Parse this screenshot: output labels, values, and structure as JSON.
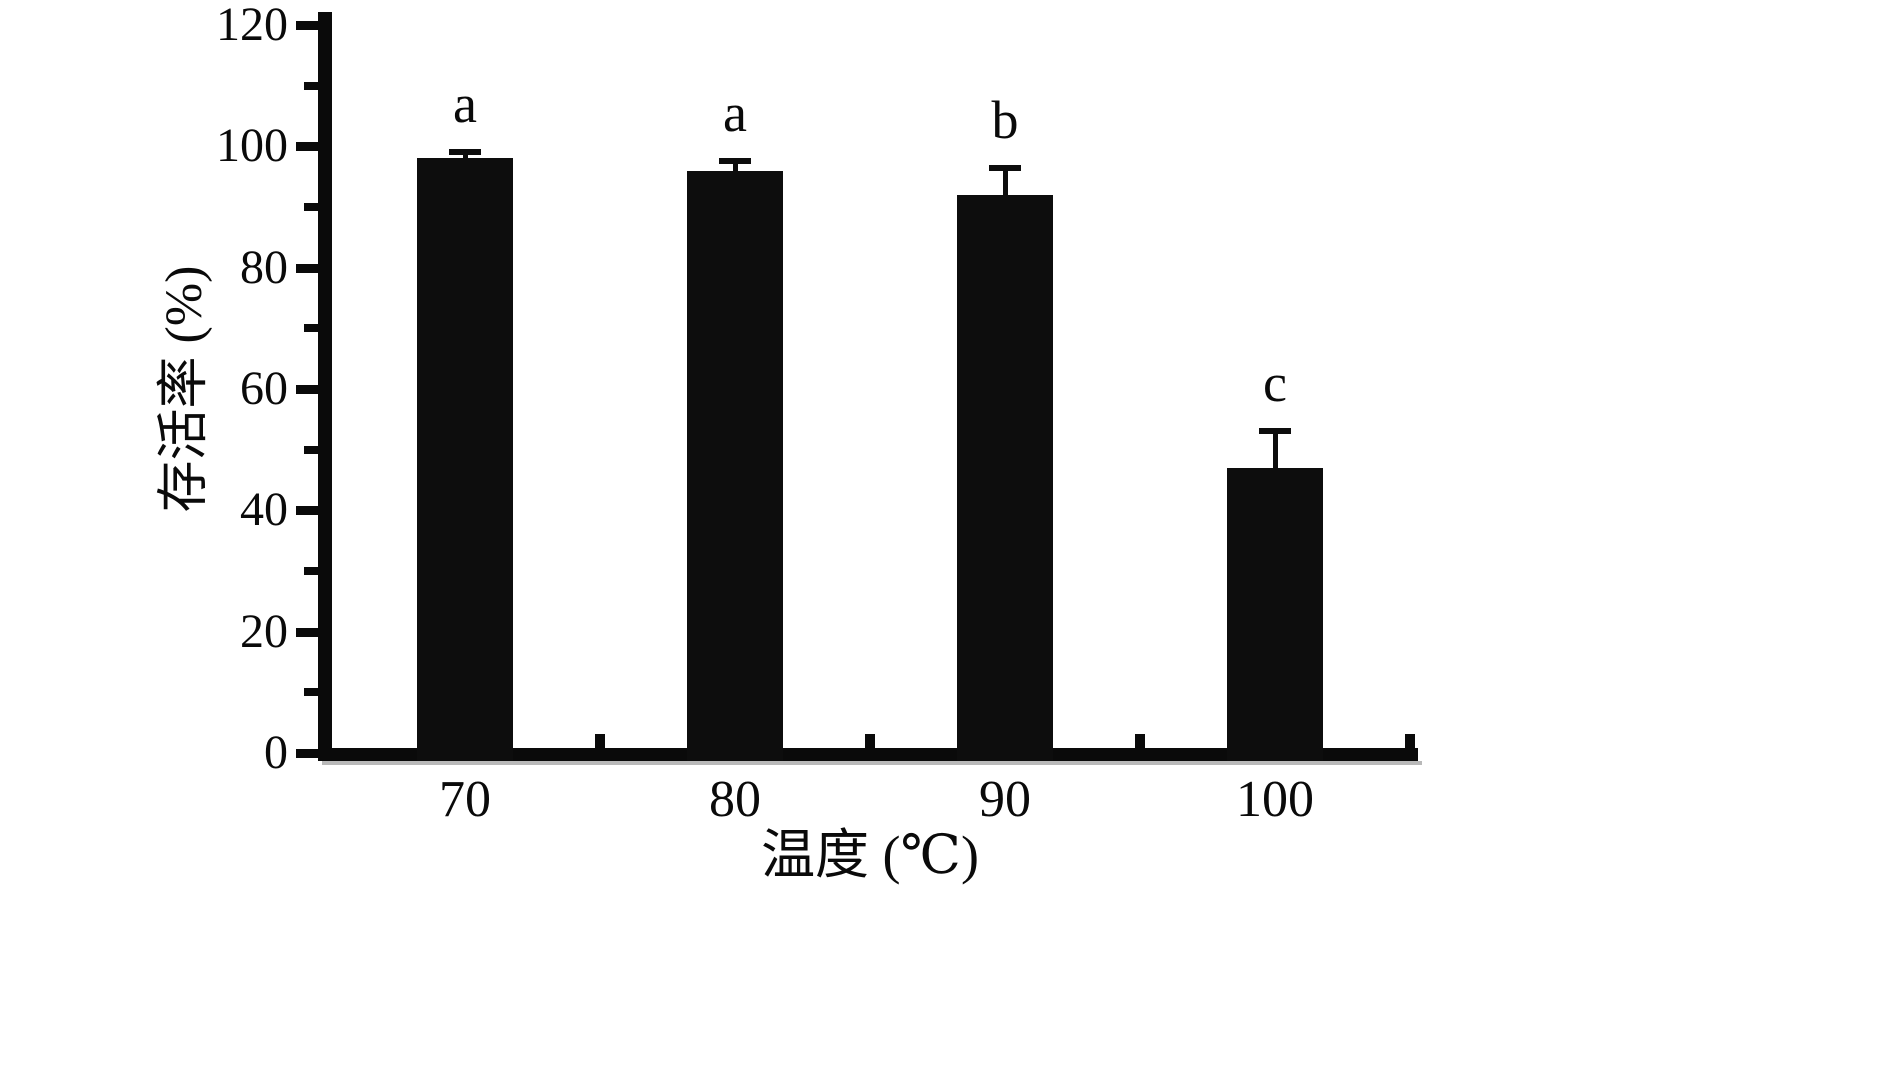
{
  "chart_data": {
    "type": "bar",
    "categories": [
      "70",
      "80",
      "90",
      "100"
    ],
    "values": [
      98,
      96,
      92,
      47
    ],
    "errors": [
      1.5,
      2,
      5,
      6.5
    ],
    "sig_labels": [
      "a",
      "a",
      "b",
      "c"
    ],
    "title": "",
    "xlabel": "温度 (℃)",
    "ylabel": "存活率 (%)",
    "ylim": [
      0,
      120
    ],
    "yticks": [
      0,
      20,
      40,
      60,
      80,
      100,
      120
    ],
    "yticks_minor": [
      10,
      30,
      50,
      70,
      90,
      110
    ],
    "bar_color": "#0d0d0d",
    "grid": false,
    "legend": "none"
  }
}
